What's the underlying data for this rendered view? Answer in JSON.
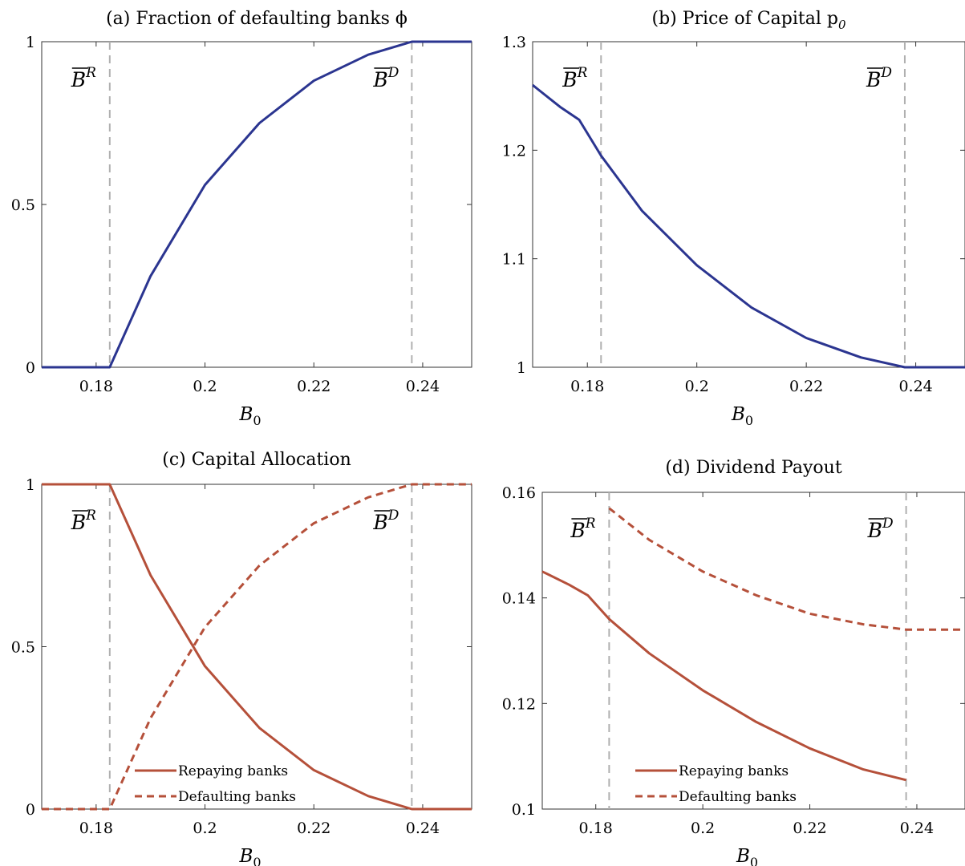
{
  "colors": {
    "blue": "#2b3590",
    "red": "#b5503a",
    "dash": "#b0b0b0"
  },
  "chart_data": [
    {
      "type": "line",
      "title": "(a) Fraction of defaulting banks ϕ",
      "xlabel": "B",
      "xlabel_sub": "0",
      "xlim": [
        0.17,
        0.249
      ],
      "ylim": [
        0,
        1
      ],
      "xticks": [
        0.18,
        0.2,
        0.22,
        0.24
      ],
      "xtick_labels": [
        "0.18",
        "0.2",
        "0.22",
        "0.24"
      ],
      "yticks": [
        0,
        0.5,
        1
      ],
      "ytick_labels": [
        "0",
        "0.5",
        "1"
      ],
      "vlines": [
        0.1825,
        0.238
      ],
      "annotations": [
        {
          "base": "B",
          "sup": "R",
          "x": 0.1825,
          "side": "left"
        },
        {
          "base": "B",
          "sup": "D",
          "x": 0.238,
          "side": "left"
        }
      ],
      "series": [
        {
          "style": "solid",
          "color": "blue",
          "x": [
            0.17,
            0.1825,
            0.19,
            0.2,
            0.21,
            0.22,
            0.23,
            0.238,
            0.249
          ],
          "y": [
            0,
            0,
            0.28,
            0.56,
            0.75,
            0.88,
            0.96,
            1,
            1
          ]
        }
      ]
    },
    {
      "type": "line",
      "title": "(b) Price of Capital p",
      "title_sub": "0",
      "xlabel": "B",
      "xlabel_sub": "0",
      "xlim": [
        0.17,
        0.249
      ],
      "ylim": [
        1,
        1.3
      ],
      "xticks": [
        0.18,
        0.2,
        0.22,
        0.24
      ],
      "xtick_labels": [
        "0.18",
        "0.2",
        "0.22",
        "0.24"
      ],
      "yticks": [
        1,
        1.1,
        1.2,
        1.3
      ],
      "ytick_labels": [
        "1",
        "1.1",
        "1.2",
        "1.3"
      ],
      "vlines": [
        0.1825,
        0.238
      ],
      "annotations": [
        {
          "base": "B",
          "sup": "R",
          "x": 0.1825,
          "side": "left"
        },
        {
          "base": "B",
          "sup": "D",
          "x": 0.238,
          "side": "left"
        }
      ],
      "series": [
        {
          "style": "solid",
          "color": "blue",
          "x": [
            0.17,
            0.171,
            0.175,
            0.1785,
            0.1825,
            0.19,
            0.2,
            0.21,
            0.22,
            0.23,
            0.238,
            0.249
          ],
          "y": [
            1.26,
            1.256,
            1.24,
            1.228,
            1.195,
            1.144,
            1.094,
            1.055,
            1.027,
            1.009,
            1,
            1
          ]
        }
      ]
    },
    {
      "type": "line",
      "title": "(c) Capital Allocation",
      "xlabel": "B",
      "xlabel_sub": "0",
      "xlim": [
        0.17,
        0.249
      ],
      "ylim": [
        0,
        1
      ],
      "xticks": [
        0.18,
        0.2,
        0.22,
        0.24
      ],
      "xtick_labels": [
        "0.18",
        "0.2",
        "0.22",
        "0.24"
      ],
      "yticks": [
        0,
        0.5,
        1
      ],
      "ytick_labels": [
        "0",
        "0.5",
        "1"
      ],
      "vlines": [
        0.1825,
        0.238
      ],
      "annotations": [
        {
          "base": "B",
          "sup": "R",
          "x": 0.1825,
          "side": "left"
        },
        {
          "base": "B",
          "sup": "D",
          "x": 0.238,
          "side": "left"
        }
      ],
      "legend": {
        "placement": "bottom-left"
      },
      "series": [
        {
          "name": "Repaying banks",
          "style": "solid",
          "color": "red",
          "x": [
            0.17,
            0.1825,
            0.19,
            0.2,
            0.21,
            0.22,
            0.23,
            0.238,
            0.249
          ],
          "y": [
            1,
            1,
            0.72,
            0.44,
            0.25,
            0.12,
            0.04,
            0,
            0
          ]
        },
        {
          "name": "Defaulting banks",
          "style": "dashed",
          "color": "red",
          "x": [
            0.17,
            0.1825,
            0.19,
            0.2,
            0.21,
            0.22,
            0.23,
            0.238,
            0.249
          ],
          "y": [
            0,
            0,
            0.28,
            0.56,
            0.75,
            0.88,
            0.96,
            1,
            1
          ]
        }
      ]
    },
    {
      "type": "line",
      "title": "(d) Dividend Payout",
      "xlabel": "B",
      "xlabel_sub": "0",
      "xlim": [
        0.17,
        0.249
      ],
      "ylim": [
        0.1,
        0.16
      ],
      "xticks": [
        0.18,
        0.2,
        0.22,
        0.24
      ],
      "xtick_labels": [
        "0.18",
        "0.2",
        "0.22",
        "0.24"
      ],
      "yticks": [
        0.1,
        0.12,
        0.14,
        0.16
      ],
      "ytick_labels": [
        "0.1",
        "0.12",
        "0.14",
        "0.16"
      ],
      "vlines": [
        0.1825,
        0.238
      ],
      "annotations": [
        {
          "base": "B",
          "sup": "R",
          "x": 0.1825,
          "side": "left"
        },
        {
          "base": "B",
          "sup": "D",
          "x": 0.238,
          "side": "left"
        }
      ],
      "legend": {
        "placement": "bottom-left"
      },
      "series": [
        {
          "name": "Repaying banks",
          "style": "solid",
          "color": "red",
          "x": [
            0.17,
            0.171,
            0.175,
            0.1785,
            0.1825,
            0.19,
            0.2,
            0.21,
            0.22,
            0.23,
            0.238
          ],
          "y": [
            0.145,
            0.1445,
            0.1425,
            0.1405,
            0.136,
            0.1295,
            0.1225,
            0.1165,
            0.1115,
            0.1075,
            0.1055
          ]
        },
        {
          "name": "Defaulting banks",
          "style": "dashed",
          "color": "red",
          "x": [
            0.1825,
            0.19,
            0.2,
            0.21,
            0.22,
            0.23,
            0.238,
            0.249
          ],
          "y": [
            0.157,
            0.151,
            0.145,
            0.1405,
            0.137,
            0.135,
            0.134,
            0.134
          ]
        }
      ]
    }
  ]
}
